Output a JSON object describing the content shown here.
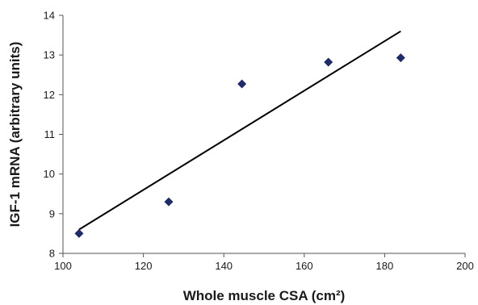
{
  "chart_data": {
    "type": "scatter",
    "xlabel": "Whole muscle CSA (cm²)",
    "ylabel": "IGF-1 mRNA (arbitrary units)",
    "xlim": [
      100,
      200
    ],
    "ylim": [
      8,
      14
    ],
    "x_ticks": [
      "100",
      "120",
      "140",
      "160",
      "180",
      "200"
    ],
    "y_ticks": [
      "8",
      "9",
      "10",
      "11",
      "12",
      "13",
      "14"
    ],
    "grid": false,
    "legend": "none",
    "marker_color": "#1f2a6b",
    "series": [
      {
        "marker": "diamond",
        "points": [
          {
            "x": 104,
            "y": 8.5
          },
          {
            "x": 126.3,
            "y": 9.3
          },
          {
            "x": 144.5,
            "y": 12.27
          },
          {
            "x": 166,
            "y": 12.82
          },
          {
            "x": 184,
            "y": 12.93
          }
        ]
      }
    ],
    "trendline": {
      "type": "linear",
      "color": "#000000",
      "from": {
        "x": 104,
        "y": 8.6
      },
      "to": {
        "x": 184,
        "y": 13.6
      }
    }
  }
}
